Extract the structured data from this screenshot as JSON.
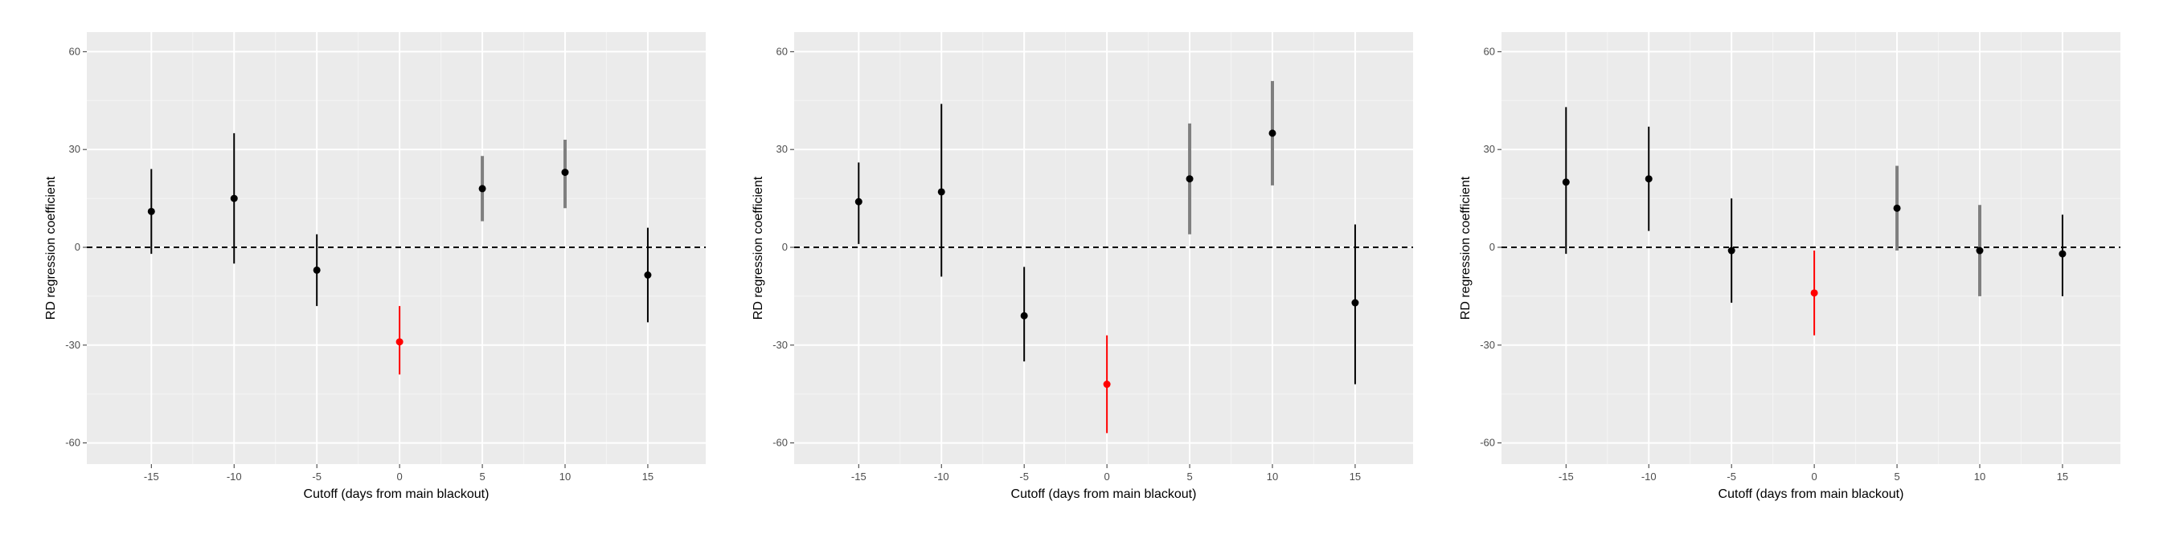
{
  "chart_data": [
    {
      "type": "scatter",
      "xlabel": "Cutoff (days from main blackout)",
      "ylabel": "RD regression coefficient",
      "x_ticks": [
        -15,
        -10,
        -5,
        0,
        5,
        10,
        15
      ],
      "y_ticks": [
        60,
        30,
        0,
        -30,
        -60
      ],
      "xlim": [
        -18.9,
        18.5
      ],
      "ylim": [
        -66.5,
        66
      ],
      "grid": true,
      "reference_line_y": 0,
      "points": [
        {
          "x": -15,
          "y": 11,
          "lower": -2,
          "upper": 24,
          "color": "#000000"
        },
        {
          "x": -10,
          "y": 15,
          "lower": -5,
          "upper": 35,
          "color": "#000000"
        },
        {
          "x": -5,
          "y": -7,
          "lower": -18,
          "upper": 4,
          "color": "#000000"
        },
        {
          "x": 0,
          "y": -29,
          "lower": -39,
          "upper": -18,
          "color": "#ff0000"
        },
        {
          "x": 5,
          "y": 18,
          "lower": 8,
          "upper": 28,
          "color": "#7f7f7f"
        },
        {
          "x": 10,
          "y": 23,
          "lower": 12,
          "upper": 33,
          "color": "#7f7f7f"
        },
        {
          "x": 15,
          "y": -8.5,
          "lower": -23,
          "upper": 6,
          "color": "#000000"
        }
      ]
    },
    {
      "type": "scatter",
      "xlabel": "Cutoff (days from main blackout)",
      "ylabel": "RD regression coefficient",
      "x_ticks": [
        -15,
        -10,
        -5,
        0,
        5,
        10,
        15
      ],
      "y_ticks": [
        60,
        30,
        0,
        -30,
        -60
      ],
      "xlim": [
        -18.9,
        18.5
      ],
      "ylim": [
        -66.5,
        66
      ],
      "grid": true,
      "reference_line_y": 0,
      "points": [
        {
          "x": -15,
          "y": 14,
          "lower": 1,
          "upper": 26,
          "color": "#000000"
        },
        {
          "x": -10,
          "y": 17,
          "lower": -9,
          "upper": 44,
          "color": "#000000"
        },
        {
          "x": -5,
          "y": -21,
          "lower": -35,
          "upper": -6,
          "color": "#000000"
        },
        {
          "x": 0,
          "y": -42,
          "lower": -57,
          "upper": -27,
          "color": "#ff0000"
        },
        {
          "x": 5,
          "y": 21,
          "lower": 4,
          "upper": 38,
          "color": "#7f7f7f"
        },
        {
          "x": 10,
          "y": 35,
          "lower": 19,
          "upper": 51,
          "color": "#7f7f7f"
        },
        {
          "x": 15,
          "y": -17,
          "lower": -42,
          "upper": 7,
          "color": "#000000"
        }
      ]
    },
    {
      "type": "scatter",
      "xlabel": "Cutoff (days from main blackout)",
      "ylabel": "RD regression coefficient",
      "x_ticks": [
        -15,
        -10,
        -5,
        0,
        5,
        10,
        15
      ],
      "y_ticks": [
        60,
        30,
        0,
        -30,
        -60
      ],
      "xlim": [
        -18.9,
        18.5
      ],
      "ylim": [
        -66.5,
        66
      ],
      "grid": true,
      "reference_line_y": 0,
      "points": [
        {
          "x": -15,
          "y": 20,
          "lower": -2,
          "upper": 43,
          "color": "#000000"
        },
        {
          "x": -10,
          "y": 21,
          "lower": 5,
          "upper": 37,
          "color": "#000000"
        },
        {
          "x": -5,
          "y": -1,
          "lower": -17,
          "upper": 15,
          "color": "#000000"
        },
        {
          "x": 0,
          "y": -14,
          "lower": -27,
          "upper": -1,
          "color": "#ff0000"
        },
        {
          "x": 5,
          "y": 12,
          "lower": -1,
          "upper": 25,
          "color": "#7f7f7f"
        },
        {
          "x": 10,
          "y": -1,
          "lower": -15,
          "upper": 13,
          "color": "#7f7f7f"
        },
        {
          "x": 15,
          "y": -2,
          "lower": -15,
          "upper": 10,
          "color": "#000000"
        }
      ]
    }
  ],
  "colors": {
    "panel_background": "#ebebeb",
    "major_grid": "#ffffff",
    "minor_grid": "#f5f5f5",
    "reference_line": "#000000",
    "tick_label": "#4d4d4d"
  }
}
